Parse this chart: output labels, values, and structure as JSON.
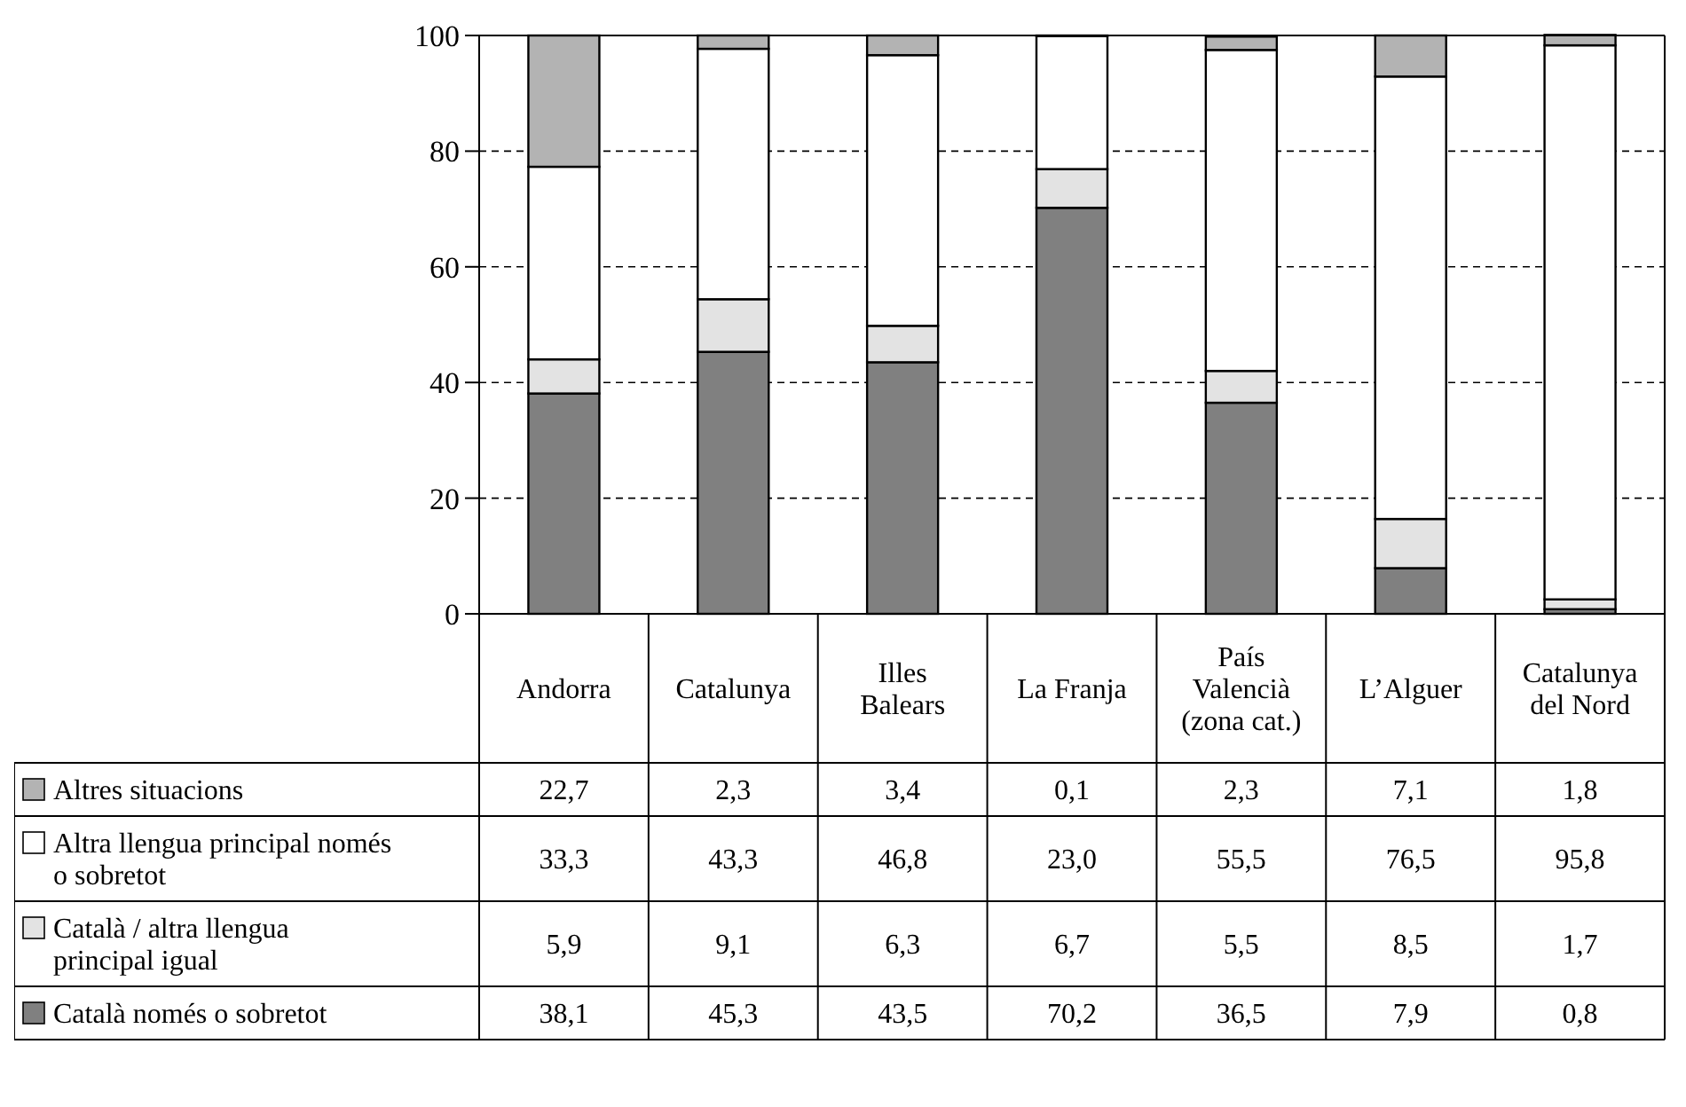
{
  "chart_data": {
    "type": "bar",
    "stacked": true,
    "categories": [
      "Andorra",
      "Catalunya",
      "Illes Balears",
      "La Franja",
      "País Valencià (zona cat.)",
      "L’Alguer",
      "Catalunya del Nord"
    ],
    "series": [
      {
        "name": "Català només o sobretot",
        "color": "#808080",
        "values": [
          38.1,
          45.3,
          43.5,
          70.2,
          36.5,
          7.9,
          0.8
        ],
        "value_labels": [
          "38,1",
          "45,3",
          "43,5",
          "70,2",
          "36,5",
          "7,9",
          "0,8"
        ]
      },
      {
        "name": "Català / altra llengua principal igual",
        "color": "#e3e3e3",
        "values": [
          5.9,
          9.1,
          6.3,
          6.7,
          5.5,
          8.5,
          1.7
        ],
        "value_labels": [
          "5,9",
          "9,1",
          "6,3",
          "6,7",
          "5,5",
          "8,5",
          "1,7"
        ]
      },
      {
        "name": "Altra llengua principal només o sobretot",
        "color": "#ffffff",
        "values": [
          33.3,
          43.3,
          46.8,
          23.0,
          55.5,
          76.5,
          95.8
        ],
        "value_labels": [
          "33,3",
          "43,3",
          "46,8",
          "23,0",
          "55,5",
          "76,5",
          "95,8"
        ]
      },
      {
        "name": "Altres situacions",
        "color": "#b3b3b3",
        "values": [
          22.7,
          2.3,
          3.4,
          0.1,
          2.3,
          7.1,
          1.8
        ],
        "value_labels": [
          "22,7",
          "2,3",
          "3,4",
          "0,1",
          "2,3",
          "7,1",
          "1,8"
        ]
      }
    ],
    "ylim": [
      0,
      100
    ],
    "yticks": [
      0,
      20,
      40,
      60,
      80,
      100
    ],
    "grid": "y",
    "legend": "bottom left"
  }
}
